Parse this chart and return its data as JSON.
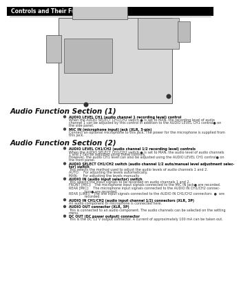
{
  "bg_color": "#ffffff",
  "header_bg": "#000000",
  "header_text": "Controls and Their Functions",
  "header_text_color": "#ffffff",
  "header_font_size": 5.5,
  "separator_color": "#888888",
  "section1_title": "Audio Function Section (1)",
  "section2_title": "Audio Function Section (2)",
  "section_title_font_size": 7.5,
  "text_color": "#222222",
  "section1_items": [
    {
      "bold": "AUDIO LEVEL CH1 (audio channel 1 recording level) control",
      "body": "When the AUDIO SELECT CH1/CH2 switch ● is set to MAN, the recording level of audio\nchannel 1 can be adjusted by this control in addition to the AUDIO LEVEL CH1 control● on\nthe side panel."
    },
    {
      "bold": "MIC IN (microphone input) jack (XLR, 3-pin)",
      "body": "Connect an optional microphone to this jack. The power for the microphone is supplied from\nthis jack."
    }
  ],
  "section2_items": [
    {
      "bold": "AUDIO LEVEL CH1/CH2 (audio channel 1/2 recording level) controls",
      "body": "When the AUDIO SELECT CH1/CH2 switch ● is set to MAN, the audio level of audio channels\n1 and 2 can be adjusted using these controls.\nHowever, the audio CH1 level can also be adjusted using the AUDIO LEVEL CH1 control● on\nthe front panel."
    },
    {
      "bold": "AUDIO SELECT CH1/CH2 switch (audio channel 1/2 auto/manual level adjustment selec-\ntor) switch",
      "body": "This selects the method used to adjust the audio levels of audio channels 1 and 2.\nAUTO:    For adjusting the levels automatically.\nMAN:     For adjusting the levels manually."
    },
    {
      "bold": "AUDIO IN (audio input selector) switch",
      "body": "This selects the input signals to be recorded on audio channels 1 and 2.\nFRONT [MIC]:   The microphone input signals connected to the MIC IN jack● are recorded.\nREAR [MIC]:    The microphone input signals connected to the AUDIO IN CH1/CH2 connec-\n               tors● are recorded.\nREAR [LINE]:   The line input signals connected to the AUDIO IN CH1/CH2 connectors  ●  are\n               recorded."
    },
    {
      "bold": "AUDIO IN CH1/CH2 (audio input channel 1/2) connectors (XLR, 3P)",
      "body": "An audio component or microphone is connected here."
    },
    {
      "bold": "AUDIO OUT connector (XLR, 3P)",
      "body": "This is connected to an audio component. The audio channels can be selected on the setting\nmenu."
    },
    {
      "bold": "DC OUT (DC power output) connector",
      "body": "This is the DC 12 V output connector. A current of approximately 100 mA can be taken out."
    }
  ]
}
